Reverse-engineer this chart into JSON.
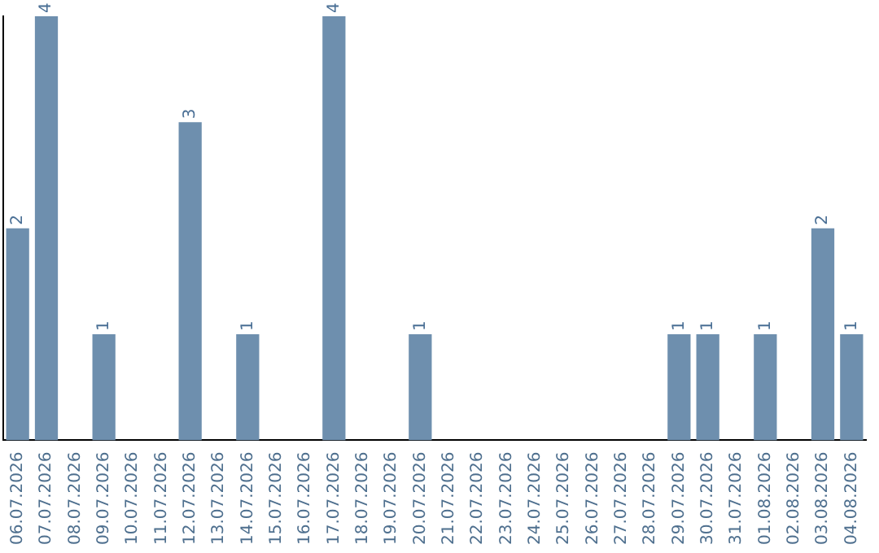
{
  "chart_data": {
    "type": "bar",
    "categories": [
      "06.07.2026",
      "07.07.2026",
      "08.07.2026",
      "09.07.2026",
      "10.07.2026",
      "11.07.2026",
      "12.07.2026",
      "13.07.2026",
      "14.07.2026",
      "15.07.2026",
      "16.07.2026",
      "17.07.2026",
      "18.07.2026",
      "19.07.2026",
      "20.07.2026",
      "21.07.2026",
      "22.07.2026",
      "23.07.2026",
      "24.07.2026",
      "25.07.2026",
      "26.07.2026",
      "27.07.2026",
      "28.07.2026",
      "29.07.2026",
      "30.07.2026",
      "31.07.2026",
      "01.08.2026",
      "02.08.2026",
      "03.08.2026",
      "04.08.2026"
    ],
    "values": [
      2,
      4,
      0,
      1,
      0,
      0,
      3,
      0,
      1,
      0,
      0,
      4,
      0,
      0,
      1,
      0,
      0,
      0,
      0,
      0,
      0,
      0,
      0,
      1,
      1,
      0,
      1,
      0,
      2,
      1
    ],
    "value_labels": [
      "2",
      "4",
      null,
      "1",
      null,
      null,
      "3",
      null,
      "1",
      null,
      null,
      "4",
      null,
      null,
      "1",
      null,
      null,
      null,
      null,
      null,
      null,
      null,
      null,
      "1",
      "1",
      null,
      "1",
      null,
      "2",
      "1"
    ],
    "color": "#6e8fae",
    "grid": false,
    "legend": false
  }
}
